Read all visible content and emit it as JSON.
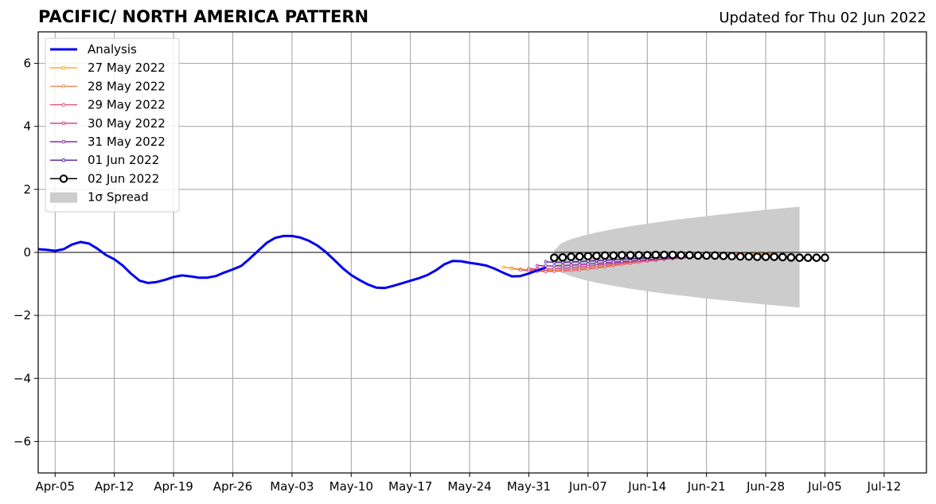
{
  "header": {
    "title": "PACIFIC/ NORTH AMERICA PATTERN",
    "updated": "Updated for Thu 02 Jun 2022"
  },
  "chart_data": {
    "type": "line",
    "title": "PACIFIC/ NORTH AMERICA PATTERN",
    "subtitle": "Updated for Thu 02 Jun 2022",
    "x_range": [
      "2022-04-03",
      "2022-07-17"
    ],
    "ylim": [
      -7,
      7
    ],
    "yticks": [
      -6,
      -4,
      -2,
      0,
      2,
      4,
      6
    ],
    "ytick_labels": [
      "−6",
      "−4",
      "−2",
      "0",
      "2",
      "4",
      "6"
    ],
    "xticks": [
      "2022-04-05",
      "2022-04-12",
      "2022-04-19",
      "2022-04-26",
      "2022-05-03",
      "2022-05-10",
      "2022-05-17",
      "2022-05-24",
      "2022-05-31",
      "2022-06-07",
      "2022-06-14",
      "2022-06-21",
      "2022-06-28",
      "2022-07-05",
      "2022-07-12"
    ],
    "xtick_labels": [
      "Apr-05",
      "Apr-12",
      "Apr-19",
      "Apr-26",
      "May-03",
      "May-10",
      "May-17",
      "May-24",
      "May-31",
      "Jun-07",
      "Jun-14",
      "Jun-21",
      "Jun-28",
      "Jul-05",
      "Jul-12"
    ],
    "grid": true,
    "legend_position": "top-left",
    "zero_line": true,
    "colors": {
      "analysis": "#0000ee",
      "grid": "#a0a0a0",
      "spread": "#cccccc"
    },
    "analysis": {
      "name": "Analysis",
      "start": "2022-04-03",
      "values": [
        0.1,
        0.08,
        0.05,
        0.1,
        0.25,
        0.33,
        0.28,
        0.12,
        -0.08,
        -0.22,
        -0.42,
        -0.68,
        -0.9,
        -0.97,
        -0.94,
        -0.87,
        -0.78,
        -0.73,
        -0.76,
        -0.8,
        -0.8,
        -0.75,
        -0.64,
        -0.54,
        -0.43,
        -0.2,
        0.05,
        0.3,
        0.46,
        0.52,
        0.52,
        0.47,
        0.37,
        0.22,
        0.01,
        -0.24,
        -0.5,
        -0.72,
        -0.88,
        -1.02,
        -1.12,
        -1.13,
        -1.06,
        -0.98,
        -0.9,
        -0.82,
        -0.72,
        -0.57,
        -0.38,
        -0.27,
        -0.28,
        -0.33,
        -0.37,
        -0.42,
        -0.52,
        -0.65,
        -0.76,
        -0.75,
        -0.67,
        -0.57,
        -0.48
      ]
    },
    "forecasts": [
      {
        "name": "27 May 2022",
        "color": "#f5a623",
        "start": "2022-05-28",
        "values": [
          -0.47,
          -0.5,
          -0.53,
          -0.55,
          -0.56,
          -0.57,
          -0.57,
          -0.56,
          -0.54,
          -0.52,
          -0.49,
          -0.46,
          -0.43,
          -0.39,
          -0.35,
          -0.32,
          -0.28,
          -0.25,
          -0.22,
          -0.19,
          -0.16,
          -0.14,
          -0.12,
          -0.1,
          -0.08,
          -0.07,
          -0.06,
          -0.05,
          -0.04,
          -0.04,
          -0.04,
          -0.04,
          -0.05
        ]
      },
      {
        "name": "28 May 2022",
        "color": "#f0864a",
        "start": "2022-05-29",
        "values": [
          -0.52,
          -0.55,
          -0.57,
          -0.58,
          -0.59,
          -0.59,
          -0.58,
          -0.57,
          -0.55,
          -0.52,
          -0.49,
          -0.46,
          -0.42,
          -0.38,
          -0.35,
          -0.31,
          -0.27,
          -0.24,
          -0.21,
          -0.18,
          -0.16,
          -0.14,
          -0.12,
          -0.1,
          -0.09,
          -0.08,
          -0.07,
          -0.06,
          -0.06,
          -0.06,
          -0.06,
          -0.07
        ]
      },
      {
        "name": "29 May 2022",
        "color": "#e0546d",
        "start": "2022-05-30",
        "values": [
          -0.56,
          -0.58,
          -0.6,
          -0.61,
          -0.6,
          -0.59,
          -0.57,
          -0.55,
          -0.52,
          -0.49,
          -0.45,
          -0.41,
          -0.38,
          -0.34,
          -0.31,
          -0.28,
          -0.25,
          -0.22,
          -0.2,
          -0.18,
          -0.16,
          -0.14,
          -0.13,
          -0.12,
          -0.11,
          -0.1,
          -0.1,
          -0.1,
          -0.1,
          -0.1,
          -0.11
        ]
      },
      {
        "name": "30 May 2022",
        "color": "#c23b8a",
        "start": "2022-05-31",
        "values": [
          -0.52,
          -0.53,
          -0.53,
          -0.52,
          -0.51,
          -0.49,
          -0.47,
          -0.44,
          -0.41,
          -0.38,
          -0.35,
          -0.32,
          -0.29,
          -0.26,
          -0.24,
          -0.22,
          -0.2,
          -0.18,
          -0.16,
          -0.15,
          -0.14,
          -0.13,
          -0.12,
          -0.12,
          -0.12,
          -0.12,
          -0.12,
          -0.12,
          -0.13,
          -0.13
        ]
      },
      {
        "name": "31 May 2022",
        "color": "#8e2aa6",
        "start": "2022-06-01",
        "values": [
          -0.42,
          -0.43,
          -0.43,
          -0.42,
          -0.41,
          -0.39,
          -0.37,
          -0.35,
          -0.33,
          -0.31,
          -0.29,
          -0.27,
          -0.25,
          -0.23,
          -0.21,
          -0.2,
          -0.18,
          -0.17,
          -0.16,
          -0.15,
          -0.14,
          -0.14,
          -0.13,
          -0.13,
          -0.13,
          -0.13,
          -0.13,
          -0.14,
          -0.14
        ]
      },
      {
        "name": "01 Jun 2022",
        "color": "#4b1d9c",
        "start": "2022-06-02",
        "values": [
          -0.3,
          -0.31,
          -0.31,
          -0.3,
          -0.29,
          -0.28,
          -0.26,
          -0.25,
          -0.23,
          -0.22,
          -0.2,
          -0.19,
          -0.17,
          -0.16,
          -0.15,
          -0.14,
          -0.13,
          -0.12,
          -0.12,
          -0.11,
          -0.11,
          -0.11,
          -0.11,
          -0.11,
          -0.11,
          -0.11,
          -0.12,
          -0.12
        ]
      },
      {
        "name": "02 Jun 2022",
        "color": "#000000",
        "start": "2022-06-03",
        "values": [
          -0.17,
          -0.16,
          -0.14,
          -0.13,
          -0.12,
          -0.11,
          -0.1,
          -0.1,
          -0.09,
          -0.09,
          -0.09,
          -0.09,
          -0.08,
          -0.08,
          -0.08,
          -0.09,
          -0.09,
          -0.1,
          -0.1,
          -0.1,
          -0.11,
          -0.12,
          -0.13,
          -0.13,
          -0.14,
          -0.14,
          -0.14,
          -0.15,
          -0.16,
          -0.17,
          -0.17,
          -0.17,
          -0.17
        ]
      }
    ],
    "spread": {
      "name": "1σ Spread",
      "start": "2022-06-03",
      "end": "2022-07-02",
      "upper_start": 0.05,
      "upper_end": 1.45,
      "lower_start": -0.4,
      "lower_end": -1.75
    }
  }
}
